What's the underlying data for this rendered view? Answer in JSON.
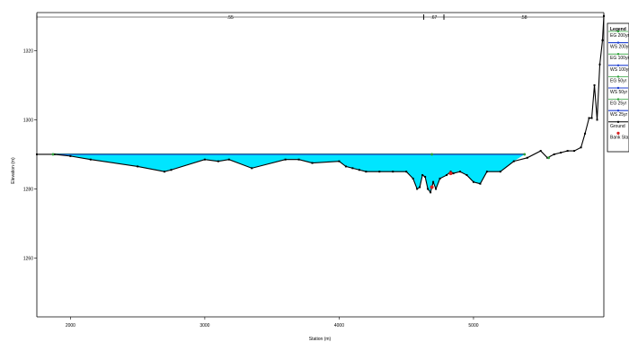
{
  "chart_data": {
    "type": "line",
    "title": "",
    "xlabel": "Station (m)",
    "ylabel": "Elevation (m)",
    "xlim": [
      1750,
      5970
    ],
    "ylim": [
      1243,
      1331
    ],
    "x_ticks": [
      2000,
      3000,
      4000,
      5000
    ],
    "y_ticks": [
      1260,
      1280,
      1300,
      1320
    ],
    "grid": false,
    "legend_placement": "right",
    "legend_title": "Legend",
    "water_surface_elevation": 1290.0,
    "water_surface_x_range": [
      1870,
      5380
    ],
    "colors": {
      "ground": "#000000",
      "water_fill": "#00e5ff",
      "water_line": "#1f3fd0",
      "eg_line": "#2fa13a",
      "bank": "#d92020",
      "legend_ws": "#1f3fd0",
      "legend_eg": "#2fa13a"
    },
    "legend": [
      {
        "label": "EG 200yr",
        "kind": "eg"
      },
      {
        "label": "WS 200yr",
        "kind": "ws"
      },
      {
        "label": "EG 100yr",
        "kind": "eg"
      },
      {
        "label": "WS 100yr",
        "kind": "ws"
      },
      {
        "label": "EG 50yr",
        "kind": "eg"
      },
      {
        "label": "WS 50yr",
        "kind": "ws"
      },
      {
        "label": "EG 25yr",
        "kind": "eg"
      },
      {
        "label": "WS 25yr",
        "kind": "ws"
      },
      {
        "label": "Ground",
        "kind": "ground"
      },
      {
        "label": "Bank Sta",
        "kind": "bank"
      }
    ],
    "reaches": [
      {
        "label": ".55",
        "x_start": 1750,
        "x_end": 4630
      },
      {
        "label": ".67",
        "x_start": 4630,
        "x_end": 4780
      },
      {
        "label": ".58",
        "x_start": 4780,
        "x_end": 5970
      }
    ],
    "ground": {
      "x": [
        1750,
        1880,
        2000,
        2150,
        2500,
        2700,
        2750,
        3000,
        3100,
        3180,
        3350,
        3600,
        3700,
        3800,
        4000,
        4050,
        4100,
        4150,
        4200,
        4300,
        4400,
        4500,
        4550,
        4580,
        4600,
        4620,
        4640,
        4660,
        4680,
        4700,
        4720,
        4750,
        4800,
        4830,
        4850,
        4900,
        4950,
        5000,
        5050,
        5100,
        5200,
        5300,
        5400,
        5500,
        5550,
        5600,
        5650,
        5700,
        5750,
        5800,
        5830,
        5860,
        5880,
        5900,
        5920,
        5940,
        5960,
        5970
      ],
      "y": [
        1290,
        1290,
        1289.5,
        1288.5,
        1286.5,
        1285,
        1285.5,
        1288.5,
        1288,
        1288.5,
        1286,
        1288.5,
        1288.5,
        1287.5,
        1288,
        1286.5,
        1286,
        1285.5,
        1285,
        1285,
        1285,
        1285,
        1283,
        1280,
        1280.5,
        1284,
        1283.5,
        1280,
        1279,
        1282,
        1280,
        1283,
        1284,
        1285,
        1284.5,
        1285,
        1284,
        1282,
        1281.5,
        1285,
        1285,
        1288,
        1289,
        1291,
        1289,
        1290,
        1290.5,
        1291,
        1291,
        1292,
        1296,
        1300.5,
        1300.5,
        1310,
        1300,
        1316,
        1323,
        1330
      ]
    },
    "bank_stations": [
      {
        "x": 4690,
        "y": 1280.5
      },
      {
        "x": 4830,
        "y": 1284.5
      }
    ],
    "eg_markers": [
      {
        "x": 1870,
        "y": 1290
      },
      {
        "x": 4690,
        "y": 1290
      },
      {
        "x": 5380,
        "y": 1290
      },
      {
        "x": 5560,
        "y": 1289
      }
    ]
  }
}
